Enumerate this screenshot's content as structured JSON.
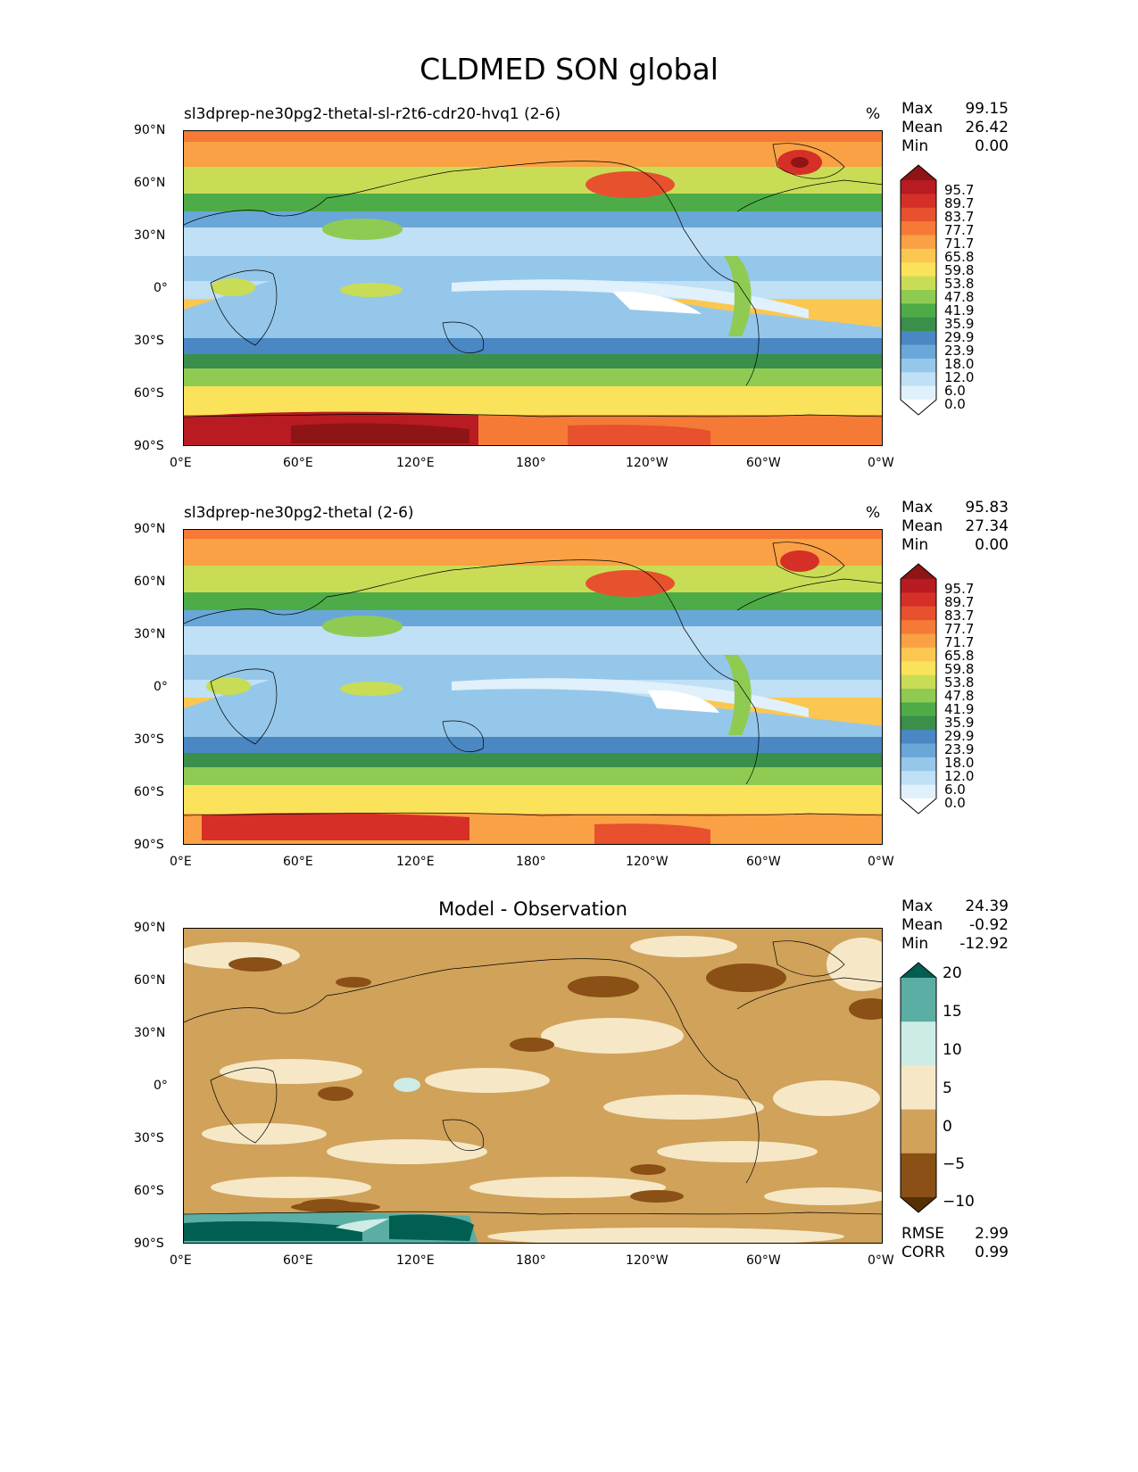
{
  "figure": {
    "title": "CLDMED SON global"
  },
  "panels": [
    {
      "id": "test",
      "title": "sl3dprep-ne30pg2-thetal-sl-r2t6-cdr20-hvq1 (2-6)",
      "units": "%",
      "stats": {
        "max_label": "Max",
        "max": "99.15",
        "mean_label": "Mean",
        "mean": "26.42",
        "min_label": "Min",
        "min": "0.00"
      }
    },
    {
      "id": "reference",
      "title": "sl3dprep-ne30pg2-thetal (2-6)",
      "units": "%",
      "stats": {
        "max_label": "Max",
        "max": "95.83",
        "mean_label": "Mean",
        "mean": "27.34",
        "min_label": "Min",
        "min": "0.00"
      }
    },
    {
      "id": "difference",
      "title": "Model - Observation",
      "stats": {
        "max_label": "Max",
        "max": "24.39",
        "mean_label": "Mean",
        "mean": "-0.92",
        "min_label": "Min",
        "min": "-12.92"
      },
      "extra_stats": {
        "rmse_label": "RMSE",
        "rmse": "2.99",
        "corr_label": "CORR",
        "corr": "0.99"
      }
    }
  ],
  "axes": {
    "lat_ticks": [
      "90°N",
      "60°N",
      "30°N",
      "0°",
      "30°S",
      "60°S",
      "90°S"
    ],
    "lon_ticks": [
      "0°E",
      "60°E",
      "120°E",
      "180°",
      "120°W",
      "60°W",
      "0°W"
    ]
  },
  "colorbar_main": {
    "levels": [
      "95.7",
      "89.7",
      "83.7",
      "77.7",
      "71.7",
      "65.8",
      "59.8",
      "53.8",
      "47.8",
      "41.9",
      "35.9",
      "29.9",
      "23.9",
      "18.0",
      "12.0",
      "6.0",
      "0.0"
    ],
    "colors": [
      "#8e1416",
      "#b81b22",
      "#d62f27",
      "#e8512d",
      "#f47a36",
      "#f9a144",
      "#fcc750",
      "#fae35a",
      "#c9dc55",
      "#8fcb52",
      "#4dac47",
      "#3a8f4a",
      "#4a87c3",
      "#6aa7d9",
      "#95c7ea",
      "#bfe0f5",
      "#e0f1fb",
      "#ffffff"
    ]
  },
  "colorbar_diff": {
    "levels": [
      "20",
      "15",
      "10",
      "5",
      "0",
      "−5",
      "−10"
    ],
    "colors": [
      "#015f51",
      "#5aaea3",
      "#cdece6",
      "#f6e8c6",
      "#d0a25a",
      "#8a5015",
      "#543005"
    ]
  },
  "map_colors": {
    "ocean_white": "#ffffff",
    "pole_red": "#c0232a",
    "coast": "#000000"
  }
}
